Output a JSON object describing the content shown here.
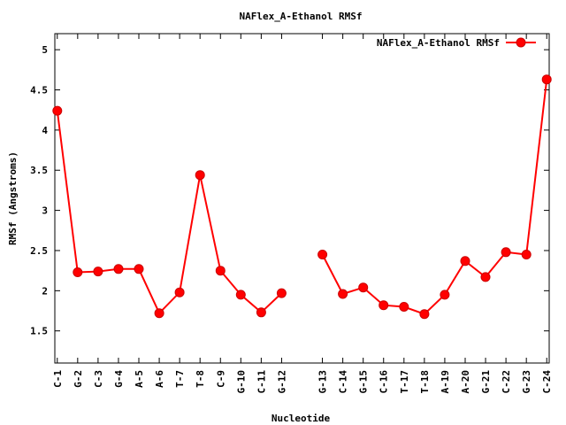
{
  "chart_data": {
    "type": "line",
    "title": "NAFlex_A-Ethanol RMSf",
    "xlabel": "Nucleotide",
    "ylabel": "RMSf (Angstroms)",
    "ylim": [
      1.1,
      5.2
    ],
    "yticks": [
      1.5,
      2,
      2.5,
      3,
      3.5,
      4,
      4.5,
      5
    ],
    "yticklabels": [
      "1.5",
      "2",
      "2.5",
      "3",
      "3.5",
      "4",
      "4.5",
      "5"
    ],
    "categories": [
      "C-1",
      "G-2",
      "C-3",
      "G-4",
      "A-5",
      "A-6",
      "T-7",
      "T-8",
      "C-9",
      "G-10",
      "C-11",
      "G-12",
      "G-13",
      "C-14",
      "G-15",
      "C-16",
      "T-17",
      "T-18",
      "A-19",
      "A-20",
      "G-21",
      "C-22",
      "G-23",
      "C-24"
    ],
    "x": [
      1,
      2,
      3,
      4,
      5,
      6,
      7,
      8,
      9,
      10,
      11,
      12,
      14,
      15,
      16,
      17,
      18,
      19,
      20,
      21,
      22,
      23,
      24,
      25
    ],
    "xlim": [
      0.88,
      25.12
    ],
    "legend": "top-right",
    "grid": false,
    "series": [
      {
        "name": "NAFlex_A-Ethanol RMSf",
        "color": "#ff0000",
        "segments": [
          [
            4.24,
            2.23,
            2.24,
            2.27,
            2.27,
            1.72,
            1.98,
            3.44,
            2.25,
            1.95,
            1.73,
            1.97
          ],
          [
            2.45,
            1.96,
            2.04,
            1.82,
            1.8,
            1.71,
            1.95,
            2.37,
            2.17,
            2.48,
            2.45,
            4.63
          ]
        ]
      }
    ]
  }
}
